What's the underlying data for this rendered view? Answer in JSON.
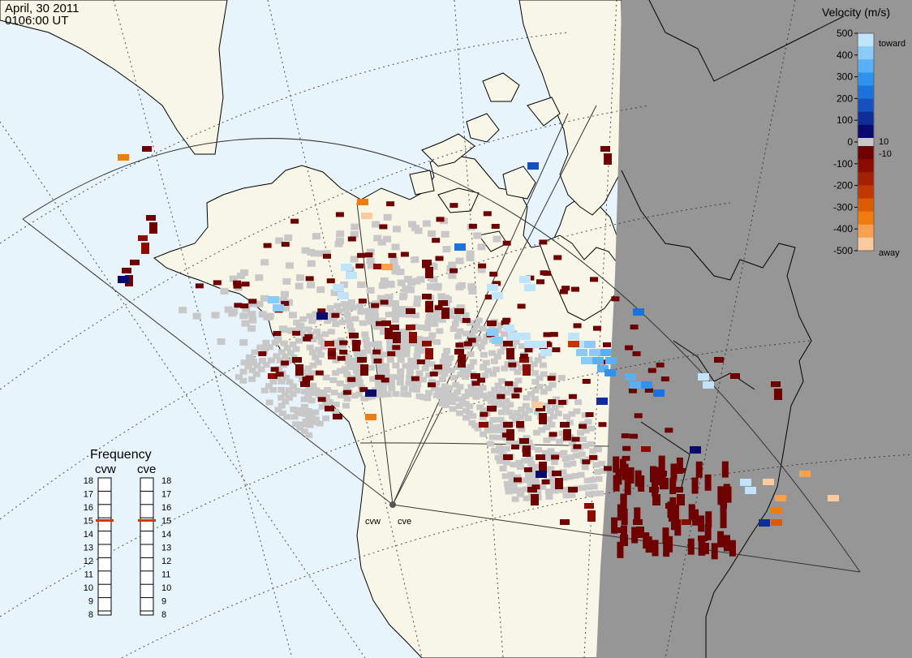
{
  "header": {
    "date": "April, 30 2011",
    "time": "0106:00 UT"
  },
  "radars": {
    "west": "cvw",
    "east": "cve"
  },
  "legend": {
    "title": "Velocity (m/s)",
    "ticks": [
      "500",
      "400",
      "300",
      "200",
      "100",
      "0",
      "-100",
      "-200",
      "-300",
      "-400",
      "-500"
    ],
    "threshold_pos": "10",
    "threshold_neg": "-10",
    "toward_label": "toward",
    "away_label": "away",
    "colors": {
      "toward": [
        "#0a0a6e",
        "#0f2d96",
        "#1550c0",
        "#1c72dc",
        "#2f92ec",
        "#5ab0f4",
        "#8acbf8",
        "#c0e4fc"
      ],
      "away": [
        "#6e0000",
        "#8c0a00",
        "#a52000",
        "#c03800",
        "#dc5a00",
        "#f07c10",
        "#f8a050",
        "#fccaa0"
      ],
      "ground_scatter": "#c8c8c8"
    }
  },
  "frequency": {
    "title": "Frequency",
    "west_label": "cvw",
    "east_label": "cve",
    "ticks": [
      "18",
      "17",
      "16",
      "15",
      "14",
      "13",
      "12",
      "11",
      "10",
      "9",
      "8"
    ],
    "west_mhz": 15,
    "east_mhz": 15,
    "marker_color": "#dd3300"
  },
  "map_colors": {
    "ocean": "#e8f4fc",
    "land": "#f8f6e6",
    "night": "#969696",
    "coastline": "#000000"
  }
}
